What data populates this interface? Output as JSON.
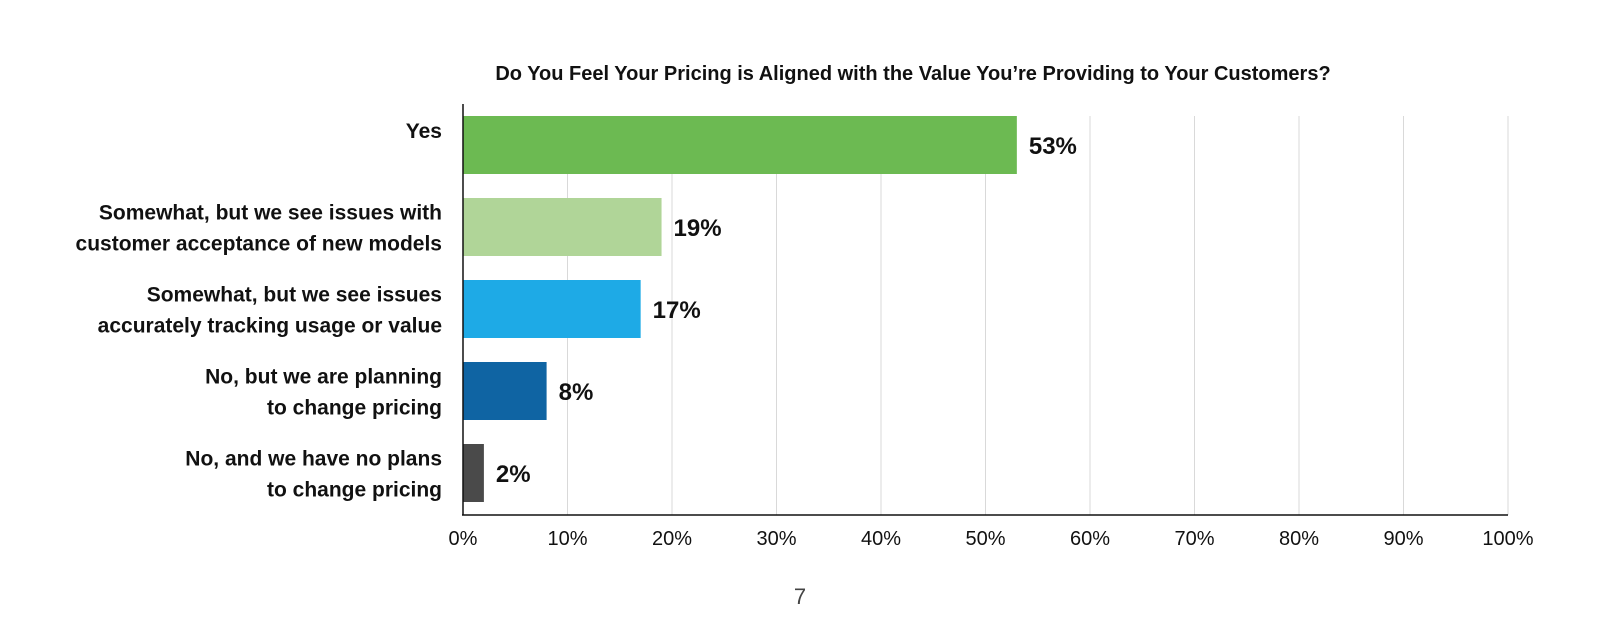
{
  "chart_data": {
    "type": "bar",
    "orientation": "horizontal",
    "title": "Do You Feel Your Pricing is Aligned with the Value You’re Providing to Your Customers?",
    "categories": [
      [
        "Yes"
      ],
      [
        "Somewhat, but we see issues with",
        "customer acceptance of new models"
      ],
      [
        "Somewhat, but we see issues",
        "accurately tracking usage or value"
      ],
      [
        "No, but we are planning",
        "to change pricing"
      ],
      [
        "No, and we have no plans",
        "to change pricing"
      ]
    ],
    "values": [
      53,
      19,
      17,
      8,
      2
    ],
    "data_labels": [
      "53%",
      "19%",
      "17%",
      "8%",
      "2%"
    ],
    "colors": [
      "#6cba52",
      "#b0d598",
      "#1eaae6",
      "#0f64a3",
      "#4a4a4a"
    ],
    "xlim": [
      0,
      100
    ],
    "x_ticks": [
      "0%",
      "10%",
      "20%",
      "30%",
      "40%",
      "50%",
      "60%",
      "70%",
      "80%",
      "90%",
      "100%"
    ],
    "grid": true,
    "xlabel": "",
    "ylabel": ""
  },
  "page": {
    "number": "7"
  }
}
